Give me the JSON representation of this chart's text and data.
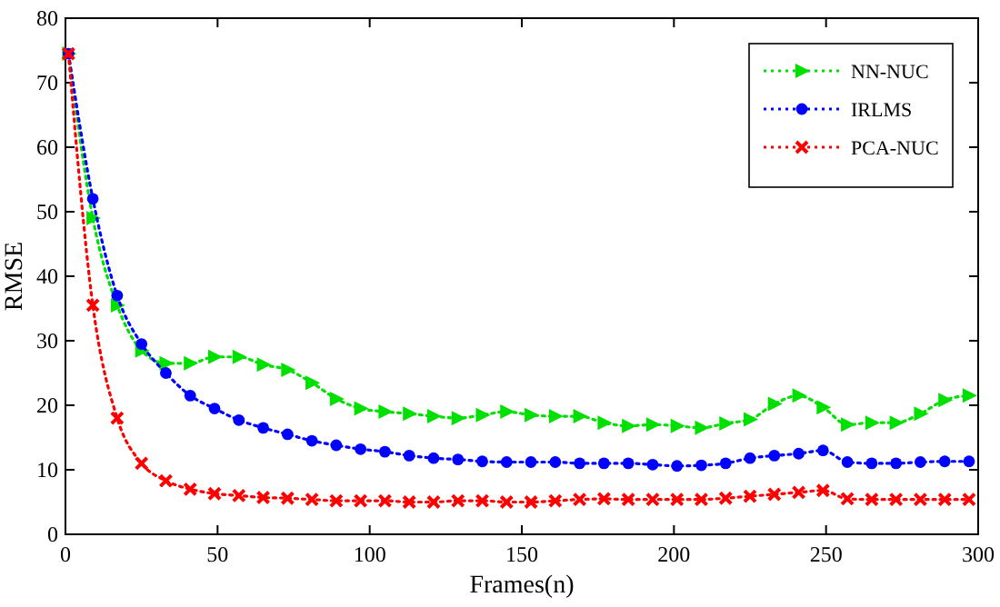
{
  "chart_data": {
    "type": "line",
    "xlabel": "Frames(n)",
    "ylabel": "RMSE",
    "x": [
      1,
      9,
      17,
      25,
      33,
      41,
      49,
      57,
      65,
      73,
      81,
      89,
      97,
      105,
      113,
      121,
      129,
      137,
      145,
      153,
      161,
      169,
      177,
      185,
      193,
      201,
      209,
      217,
      225,
      233,
      241,
      249,
      257,
      265,
      273,
      281,
      289,
      297
    ],
    "series": [
      {
        "name": "NN-NUC",
        "color": "#00e000",
        "marker": "triangle",
        "values": [
          74.5,
          49,
          35.5,
          28.5,
          26.5,
          26.5,
          27.5,
          27.5,
          26.3,
          25.5,
          23.5,
          21,
          19.5,
          19,
          18.7,
          18.3,
          18,
          18.5,
          19,
          18.5,
          18.3,
          18.3,
          17.3,
          16.8,
          17,
          16.8,
          16.5,
          17.2,
          17.8,
          20.2,
          21.5,
          19.7,
          17,
          17.3,
          17.3,
          18.7,
          20.8,
          21.5
        ]
      },
      {
        "name": "IRLMS",
        "color": "#0000ff",
        "marker": "circle",
        "values": [
          74.5,
          52,
          37,
          29.5,
          25,
          21.5,
          19.5,
          17.7,
          16.5,
          15.5,
          14.5,
          13.8,
          13.2,
          12.8,
          12.2,
          11.8,
          11.6,
          11.3,
          11.2,
          11.2,
          11.2,
          11,
          11,
          11,
          10.8,
          10.6,
          10.7,
          11,
          11.8,
          12.2,
          12.5,
          13,
          11.2,
          11,
          11,
          11.2,
          11.3,
          11.3
        ]
      },
      {
        "name": "PCA-NUC",
        "color": "#ff0000",
        "marker": "cross",
        "values": [
          74.5,
          35.5,
          18,
          11,
          8.3,
          7,
          6.3,
          6,
          5.7,
          5.6,
          5.4,
          5.2,
          5.2,
          5.2,
          5,
          5,
          5.2,
          5.2,
          5,
          5,
          5.2,
          5.4,
          5.5,
          5.4,
          5.4,
          5.4,
          5.4,
          5.6,
          5.9,
          6.2,
          6.5,
          6.8,
          5.5,
          5.4,
          5.4,
          5.4,
          5.4,
          5.4
        ]
      }
    ],
    "xlim": [
      0,
      300
    ],
    "xticks": [
      0,
      50,
      100,
      150,
      200,
      250,
      300
    ],
    "ylim": [
      0,
      80
    ],
    "yticks": [
      0,
      10,
      20,
      30,
      40,
      50,
      60,
      70,
      80
    ],
    "legend": "top right",
    "line_style": "dotted"
  }
}
